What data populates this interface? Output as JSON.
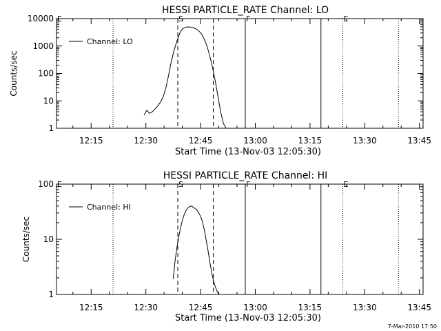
{
  "footer": {
    "timestamp": "7-Mar-2010 17:50"
  },
  "chart_data": [
    {
      "type": "line",
      "title": "HESSI PARTICLE_RATE Channel: LO",
      "xlabel": "Start Time (13-Nov-03 12:05:30)",
      "ylabel": "Counts/sec",
      "yscale": "log",
      "xlim": [
        "12:05:30",
        "13:46"
      ],
      "ylim": [
        1,
        10000
      ],
      "xtick_labels": [
        "12:15",
        "12:30",
        "12:45",
        "13:00",
        "13:15",
        "13:30",
        "13:45"
      ],
      "ytick_labels": [
        "1",
        "10",
        "100",
        "1000",
        "10000"
      ],
      "legend": "top-left",
      "series": [
        {
          "name": "Channel: LO",
          "x": [
            "12:29:30",
            "12:30:15",
            "12:31",
            "12:31:45",
            "12:32:30",
            "12:33:15",
            "12:34",
            "12:34:45",
            "12:35:30",
            "12:36:15",
            "12:37",
            "12:37:45",
            "12:38:30",
            "12:39:15",
            "12:40",
            "12:40:45",
            "12:41:30",
            "12:42:15",
            "12:43",
            "12:43:45",
            "12:44:30",
            "12:45:15",
            "12:46",
            "12:46:45",
            "12:47:30",
            "12:48:15",
            "12:49",
            "12:49:45",
            "12:50:30",
            "12:51:15",
            "12:52"
          ],
          "y": [
            3,
            4.5,
            3.5,
            4,
            5,
            6.5,
            9,
            14,
            30,
            90,
            280,
            700,
            1500,
            2900,
            4200,
            4800,
            5000,
            4900,
            4700,
            4200,
            3600,
            2800,
            1800,
            1000,
            450,
            170,
            55,
            15,
            4,
            1.5,
            1
          ]
        }
      ],
      "markers": [
        {
          "label": "E",
          "time": "12:05:30",
          "style": "dotted"
        },
        {
          "time": "12:21",
          "style": "dotted"
        },
        {
          "label": "S",
          "time": "12:38:45",
          "style": "dashed"
        },
        {
          "time": "12:48:30",
          "style": "dashed"
        },
        {
          "label": "F",
          "time": "12:57:15",
          "style": "solid"
        },
        {
          "time": "13:18",
          "style": "solid"
        },
        {
          "label": "E",
          "time": "13:24",
          "style": "dotted"
        },
        {
          "time": "13:39:15",
          "style": "dotted"
        }
      ]
    },
    {
      "type": "line",
      "title": "HESSI PARTICLE_RATE Channel: HI",
      "xlabel": "Start Time (13-Nov-03 12:05:30)",
      "ylabel": "Counts/sec",
      "yscale": "log",
      "xlim": [
        "12:05:30",
        "13:46"
      ],
      "ylim": [
        1,
        100
      ],
      "xtick_labels": [
        "12:15",
        "12:30",
        "12:45",
        "13:00",
        "13:15",
        "13:30",
        "13:45"
      ],
      "ytick_labels": [
        "1",
        "10",
        "100"
      ],
      "legend": "top-left",
      "series": [
        {
          "name": "Channel: HI",
          "x": [
            "12:37:30",
            "12:38",
            "12:38:30",
            "12:39",
            "12:39:30",
            "12:40",
            "12:40:30",
            "12:41",
            "12:41:30",
            "12:42",
            "12:42:30",
            "12:43",
            "12:43:30",
            "12:44",
            "12:44:30",
            "12:45",
            "12:45:30",
            "12:46",
            "12:46:30",
            "12:47",
            "12:47:30",
            "12:48",
            "12:48:30",
            "12:49",
            "12:49:30",
            "12:50"
          ],
          "y": [
            1.9,
            4,
            7,
            11,
            16,
            22,
            28,
            33,
            37,
            39,
            40,
            38,
            36,
            34,
            30,
            26,
            21,
            15,
            10,
            6.5,
            4,
            2.6,
            1.8,
            1.4,
            1.15,
            1
          ]
        }
      ],
      "markers": [
        {
          "label": "E",
          "time": "12:05:30",
          "style": "dotted"
        },
        {
          "time": "12:21",
          "style": "dotted"
        },
        {
          "label": "S",
          "time": "12:38:45",
          "style": "dashed"
        },
        {
          "time": "12:48:30",
          "style": "dashed"
        },
        {
          "label": "F",
          "time": "12:57:15",
          "style": "solid"
        },
        {
          "time": "13:18",
          "style": "solid"
        },
        {
          "label": "E",
          "time": "13:24",
          "style": "dotted"
        },
        {
          "time": "13:39:15",
          "style": "dotted"
        }
      ]
    }
  ]
}
